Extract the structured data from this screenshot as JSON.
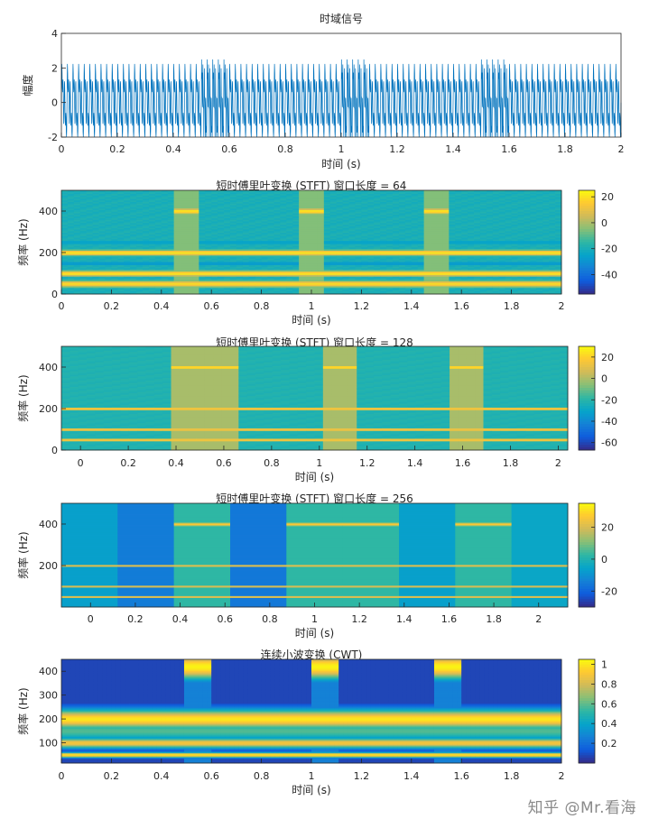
{
  "watermark": "知乎 @Mr.看海",
  "colormap": [
    "#352a87",
    "#0f5cdd",
    "#1481d6",
    "#06a4ca",
    "#2eb7a4",
    "#87bf77",
    "#d1bb59",
    "#fec832",
    "#f9fb0e"
  ],
  "line_color": "#0072bd",
  "chart_data": [
    {
      "type": "line",
      "title": "时域信号",
      "xlabel": "时间 (s)",
      "ylabel": "幅度",
      "xlim": [
        0,
        2
      ],
      "ylim": [
        -2,
        4
      ],
      "xticks": [
        "0",
        "0.2",
        "0.4",
        "0.6",
        "0.8",
        "1",
        "1.2",
        "1.4",
        "1.6",
        "1.8",
        "2"
      ],
      "yticks": [
        "-2",
        "0",
        "2",
        "4"
      ],
      "signal": {
        "components_hz": [
          50,
          100,
          200
        ],
        "burst_component_hz": 400,
        "burst_intervals_s": [
          [
            0.5,
            0.6
          ],
          [
            1.0,
            1.1
          ],
          [
            1.5,
            1.6
          ]
        ],
        "range_outside_bursts": [
          -1.6,
          3.0
        ],
        "range_inside_bursts": [
          -2.0,
          4.0
        ]
      }
    },
    {
      "type": "heatmap",
      "title": "短时傅里叶变换 (STFT) 窗口长度 = 64",
      "xlabel": "时间 (s)",
      "ylabel": "频率 (Hz)",
      "xlim": [
        0,
        2
      ],
      "ylim": [
        0,
        500
      ],
      "xticks": [
        "0",
        "0.2",
        "0.4",
        "0.6",
        "0.8",
        "1",
        "1.2",
        "1.4",
        "1.6",
        "1.8",
        "2"
      ],
      "yticks": [
        "0",
        "200",
        "400"
      ],
      "colorbar_ticks": [
        "20",
        "0",
        "-20",
        "-40"
      ],
      "clim": [
        -55,
        25
      ],
      "bands_hz": [
        50,
        100,
        200
      ],
      "burst_freq_hz": 400,
      "burst_intervals_s": [
        [
          0.46,
          0.56
        ],
        [
          0.96,
          1.06
        ],
        [
          1.46,
          1.56
        ]
      ]
    },
    {
      "type": "heatmap",
      "title": "短时傅里叶变换 (STFT) 窗口长度 = 128",
      "xlabel": "时间 (s)",
      "ylabel": "频率 (Hz)",
      "xlim": [
        -0.08,
        2.04
      ],
      "ylim": [
        0,
        500
      ],
      "xticks": [
        "0",
        "0.2",
        "0.4",
        "0.6",
        "0.8",
        "1",
        "1.2",
        "1.4",
        "1.6",
        "1.8",
        "2"
      ],
      "yticks": [
        "0",
        "200",
        "400"
      ],
      "colorbar_ticks": [
        "20",
        "0",
        "-20",
        "-40",
        "-60"
      ],
      "clim": [
        -67,
        30
      ],
      "bands_hz": [
        50,
        100,
        200
      ],
      "burst_freq_hz": 400,
      "burst_intervals_s": [
        [
          0.39,
          0.65
        ],
        [
          1.0,
          1.17
        ],
        [
          1.53,
          1.7
        ]
      ]
    },
    {
      "type": "heatmap",
      "title": "短时傅里叶变换 (STFT) 窗口长度 = 256",
      "xlabel": "时间 (s)",
      "ylabel": "频率 (Hz)",
      "xlim": [
        -0.13,
        2.13
      ],
      "ylim": [
        0,
        500
      ],
      "xticks": [
        "0",
        "0.2",
        "0.4",
        "0.6",
        "0.8",
        "1",
        "1.2",
        "1.4",
        "1.6",
        "1.8",
        "2"
      ],
      "yticks": [
        "200",
        "400"
      ],
      "colorbar_ticks": [
        "20",
        "0",
        "-20"
      ],
      "clim": [
        -30,
        35
      ],
      "bands_hz": [
        50,
        100,
        200
      ],
      "burst_freq_hz": 400,
      "burst_intervals_s": [
        [
          0.375,
          0.625
        ],
        [
          0.875,
          1.375
        ],
        [
          1.625,
          1.875
        ]
      ]
    },
    {
      "type": "heatmap",
      "title": "连续小波变换 (CWT)",
      "xlabel": "时间 (s)",
      "ylabel": "频率 (Hz)",
      "xlim": [
        0,
        2
      ],
      "ylim": [
        15,
        450
      ],
      "xticks": [
        "0",
        "0.2",
        "0.4",
        "0.6",
        "0.8",
        "1",
        "1.2",
        "1.4",
        "1.6",
        "1.8",
        "2"
      ],
      "yticks": [
        "100",
        "200",
        "300",
        "400"
      ],
      "colorbar_ticks": [
        "1",
        "0.8",
        "0.6",
        "0.4",
        "0.2"
      ],
      "clim": [
        0,
        1.05
      ],
      "bands_hz": [
        50,
        100,
        200
      ],
      "burst_freq_hz": 400,
      "burst_intervals_s": [
        [
          0.5,
          0.6
        ],
        [
          1.0,
          1.1
        ],
        [
          1.5,
          1.6
        ]
      ]
    }
  ]
}
